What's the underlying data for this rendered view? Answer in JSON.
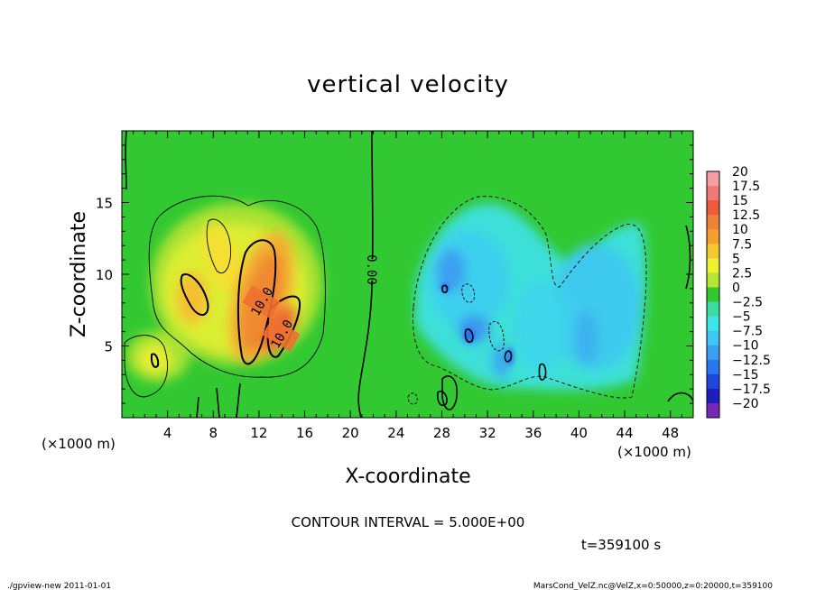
{
  "chart_data": {
    "type": "heatmap",
    "title": "vertical velocity",
    "xlabel": "X-coordinate",
    "ylabel": "Z-coordinate",
    "x_unit": "(×1000 m)",
    "y_unit": "(×1000 m)",
    "x_ticks": [
      4,
      8,
      12,
      16,
      20,
      24,
      28,
      32,
      36,
      40,
      44,
      48
    ],
    "y_ticks": [
      5,
      10,
      15
    ],
    "xlim": [
      0,
      50
    ],
    "ylim": [
      0,
      20
    ],
    "colorbar": {
      "labels": [
        "20",
        "17.5",
        "15",
        "12.5",
        "10",
        "7.5",
        "5",
        "2.5",
        "0",
        "−2.5",
        "−5",
        "−7.5",
        "−10",
        "−12.5",
        "−15",
        "−17.5",
        "−20"
      ],
      "colors": [
        "#f4a0a0",
        "#f07a7a",
        "#ee5a3a",
        "#f0823c",
        "#f4a030",
        "#f4c830",
        "#f0f032",
        "#b4e632",
        "#32c832",
        "#3cdca0",
        "#3ce6e6",
        "#3cc8f0",
        "#3ca0f0",
        "#2a78f0",
        "#1e46dc",
        "#1e1ebe",
        "#7828b4"
      ]
    },
    "contour_labels": [
      "10.0",
      "10.0",
      "0.00"
    ],
    "contour_interval_text": "CONTOUR INTERVAL = 5.000E+00",
    "time_text": "t=359100 s"
  },
  "footer": {
    "left": "./gpview-new  2011-01-01",
    "right": "MarsCond_VelZ.nc@VelZ,x=0:50000,z=0:20000,t=359100"
  }
}
